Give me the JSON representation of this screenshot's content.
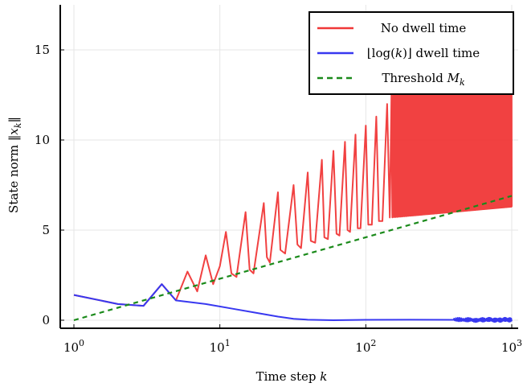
{
  "chart_data": {
    "type": "line",
    "xlabel": "Time step k",
    "ylabel": "State norm ‖x_k‖",
    "xscale": "log",
    "xlim": [
      1,
      1000
    ],
    "ylim": [
      -0.5,
      17.5
    ],
    "x_ticks": [
      {
        "value": 1,
        "base": "10",
        "exp": "0"
      },
      {
        "value": 10,
        "base": "10",
        "exp": "1"
      },
      {
        "value": 100,
        "base": "10",
        "exp": "2"
      },
      {
        "value": 1000,
        "base": "10",
        "exp": "3"
      }
    ],
    "y_ticks": [
      0,
      5,
      10,
      15
    ],
    "grid": true,
    "legend_position": "top-right",
    "series": [
      {
        "name": "No dwell time",
        "color": "#f03737",
        "style": "solid",
        "points": [
          [
            1,
            1.4
          ],
          [
            2,
            0.9
          ],
          [
            3,
            0.8
          ],
          [
            4,
            2.0
          ],
          [
            5,
            1.1
          ],
          [
            6,
            2.7
          ],
          [
            7,
            1.6
          ],
          [
            8,
            3.6
          ],
          [
            9,
            2.0
          ],
          [
            10,
            3.0
          ],
          [
            11,
            4.9
          ],
          [
            12,
            2.6
          ],
          [
            13,
            2.4
          ],
          [
            15,
            6.0
          ],
          [
            16,
            2.8
          ],
          [
            17,
            2.6
          ],
          [
            20,
            6.5
          ],
          [
            21,
            3.5
          ],
          [
            22,
            3.2
          ],
          [
            25,
            7.1
          ],
          [
            26,
            3.9
          ],
          [
            28,
            3.7
          ],
          [
            32,
            7.5
          ],
          [
            34,
            4.2
          ],
          [
            36,
            4.0
          ],
          [
            40,
            8.2
          ],
          [
            42,
            4.4
          ],
          [
            45,
            4.3
          ],
          [
            50,
            8.9
          ],
          [
            52,
            4.6
          ],
          [
            55,
            4.5
          ],
          [
            60,
            9.4
          ],
          [
            63,
            4.8
          ],
          [
            66,
            4.7
          ],
          [
            72,
            9.9
          ],
          [
            75,
            5.0
          ],
          [
            78,
            4.9
          ],
          [
            85,
            10.3
          ],
          [
            88,
            5.1
          ],
          [
            92,
            5.1
          ],
          [
            100,
            10.8
          ],
          [
            104,
            5.3
          ],
          [
            110,
            5.3
          ],
          [
            118,
            11.3
          ],
          [
            123,
            5.5
          ],
          [
            130,
            5.5
          ],
          [
            140,
            12.0
          ],
          [
            146,
            5.7
          ]
        ]
      },
      {
        "name": "⌊log(k)⌋ dwell time",
        "label_prefix": "⌊log(",
        "label_var": "k",
        "label_suffix": ")⌋ dwell time",
        "color": "#3838f0",
        "style": "solid",
        "points": [
          [
            1,
            1.4
          ],
          [
            2,
            0.9
          ],
          [
            3,
            0.8
          ],
          [
            4,
            2.0
          ],
          [
            5,
            1.1
          ],
          [
            8,
            0.9
          ],
          [
            12,
            0.65
          ],
          [
            18,
            0.4
          ],
          [
            25,
            0.2
          ],
          [
            32,
            0.08
          ],
          [
            40,
            0.03
          ],
          [
            60,
            0.0
          ],
          [
            100,
            0.02
          ],
          [
            200,
            0.03
          ],
          [
            400,
            0.0
          ],
          [
            1000,
            0.03
          ]
        ]
      },
      {
        "name": "Threshold M_k",
        "label_prefix": "Threshold ",
        "label_var": "M",
        "label_sub": "k",
        "color": "#1a8a1a",
        "style": "dashed",
        "points": [
          [
            1,
            0
          ],
          [
            1000,
            6.9
          ]
        ]
      }
    ]
  }
}
